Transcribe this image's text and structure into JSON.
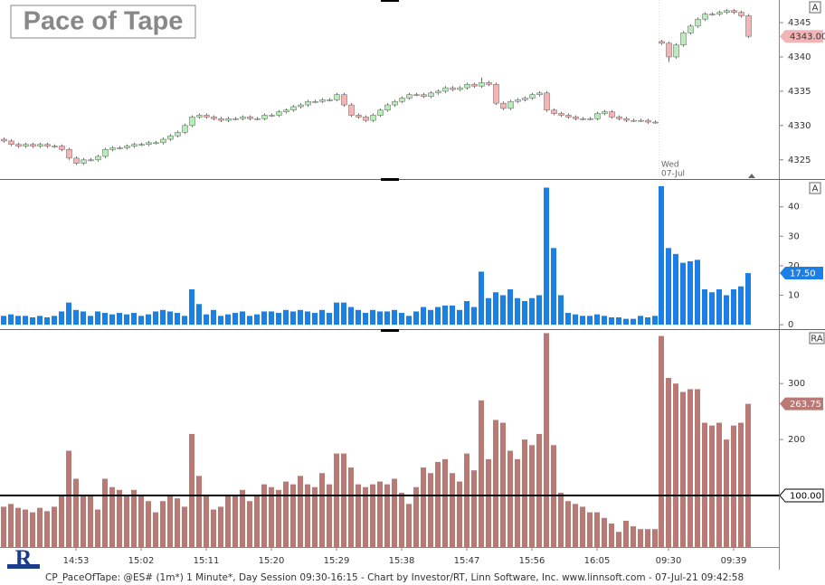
{
  "chart_data": [
    {
      "type": "candlestick",
      "title": "Pace of Tape",
      "scale_button": "A",
      "annotation": [
        "Wed",
        "07-Jul"
      ],
      "open": [
        4328,
        4327.75,
        4327.25,
        4327,
        4327.25,
        4327,
        4327.25,
        4327,
        4327,
        4326.5,
        4325.25,
        4324.5,
        4325,
        4325,
        4325.5,
        4326.5,
        4326.75,
        4326.75,
        4327,
        4327.25,
        4327.25,
        4327.5,
        4327.5,
        4328,
        4328.5,
        4329,
        4330,
        4331.25,
        4331.5,
        4331.25,
        4331,
        4330.75,
        4331,
        4331,
        4331.25,
        4331,
        4331,
        4331.5,
        4331.5,
        4332,
        4332.25,
        4332.75,
        4333,
        4333.5,
        4333.5,
        4333.75,
        4333.75,
        4334.5,
        4333,
        4331.5,
        4331.25,
        4330.75,
        4331.5,
        4332.25,
        4333,
        4333.5,
        4334,
        4334.5,
        4334.5,
        4334.25,
        4334.75,
        4335,
        4335.5,
        4335.25,
        4335.5,
        4336,
        4335.75,
        4336.25,
        4336,
        4333.25,
        4332.5,
        4333.5,
        4333.75,
        4334,
        4334.5,
        4334.75,
        4332.25,
        4331.75,
        4331.5,
        4331.25,
        4331,
        4331,
        4331,
        4331.75,
        4332,
        4331.25,
        4331,
        4330.75,
        4330.75,
        4330.75,
        4330.5,
        4342.25,
        4342,
        4340,
        4341.75,
        4343.5,
        4344.5,
        4345.5,
        4346.25,
        4346.25,
        4346.5,
        4346.75,
        4346.5,
        4346
      ],
      "high": [
        4328.25,
        4328,
        4327.5,
        4327.5,
        4327.5,
        4327.5,
        4327.5,
        4327.25,
        4327.25,
        4326.75,
        4325.5,
        4325.25,
        4325.25,
        4325.75,
        4326.75,
        4327,
        4327,
        4327.25,
        4327.5,
        4327.5,
        4327.75,
        4327.75,
        4328.25,
        4328.75,
        4329.25,
        4330.25,
        4331.5,
        4331.75,
        4331.75,
        4331.5,
        4331.25,
        4331.25,
        4331.25,
        4331.5,
        4331.5,
        4331.25,
        4331.75,
        4331.75,
        4332.25,
        4332.5,
        4333,
        4333.25,
        4333.75,
        4333.75,
        4334,
        4334,
        4334.75,
        4334.75,
        4333.25,
        4331.75,
        4331.5,
        4331.75,
        4332.5,
        4333.25,
        4333.75,
        4334.25,
        4334.75,
        4334.75,
        4334.75,
        4335,
        4335.25,
        4335.75,
        4335.75,
        4335.75,
        4336.25,
        4336.25,
        4337,
        4336.5,
        4336.25,
        4333.5,
        4333.75,
        4334,
        4334.25,
        4334.75,
        4335,
        4335,
        4332.5,
        4332,
        4331.75,
        4331.5,
        4331.25,
        4331.25,
        4332,
        4332.25,
        4332.25,
        4331.5,
        4331.25,
        4331,
        4331,
        4331,
        4330.75,
        4342.5,
        4342.25,
        4342,
        4343.75,
        4344.75,
        4345.75,
        4346.5,
        4346.5,
        4346.75,
        4347,
        4347,
        4346.75,
        4346.25
      ],
      "low": [
        4327.5,
        4327,
        4326.75,
        4326.75,
        4326.75,
        4326.75,
        4326.75,
        4326.75,
        4326.25,
        4325,
        4324.25,
        4324.25,
        4324.75,
        4324.75,
        4325.25,
        4326.25,
        4326.5,
        4326.5,
        4326.75,
        4327,
        4327,
        4327.25,
        4327.25,
        4327.75,
        4328.25,
        4328.75,
        4329.75,
        4331,
        4331,
        4330.75,
        4330.5,
        4330.5,
        4330.75,
        4330.75,
        4330.75,
        4330.75,
        4330.75,
        4331.25,
        4331.25,
        4331.75,
        4332,
        4332.5,
        4332.75,
        4333.25,
        4333.25,
        4333.5,
        4333.5,
        4332.75,
        4331.25,
        4331,
        4330.5,
        4330.5,
        4331.25,
        4332,
        4332.75,
        4333.25,
        4333.75,
        4334.25,
        4334,
        4334,
        4334.5,
        4334.75,
        4335,
        4335,
        4335.25,
        4335.5,
        4335.5,
        4335.75,
        4333,
        4332.25,
        4332.25,
        4333.25,
        4333.5,
        4333.75,
        4334.25,
        4332,
        4331.5,
        4331.25,
        4331,
        4330.75,
        4330.75,
        4330.75,
        4330.75,
        4331.5,
        4331,
        4330.75,
        4330.5,
        4330.5,
        4330.5,
        4330.25,
        4330.25,
        4341.75,
        4339.25,
        4339.75,
        4341.5,
        4343.25,
        4344.25,
        4345.25,
        4346,
        4346,
        4346.25,
        4346.25,
        4345.75,
        4342.75
      ],
      "close": [
        4327.75,
        4327.25,
        4327,
        4327.25,
        4327,
        4327.25,
        4327,
        4327,
        4326.5,
        4325.25,
        4324.5,
        4325,
        4325,
        4325.5,
        4326.5,
        4326.75,
        4326.75,
        4327,
        4327.25,
        4327.25,
        4327.5,
        4327.5,
        4328,
        4328.5,
        4329,
        4330,
        4331.25,
        4331.5,
        4331.25,
        4331,
        4330.75,
        4331,
        4331,
        4331.25,
        4331,
        4331,
        4331.5,
        4331.5,
        4332,
        4332.25,
        4332.75,
        4333,
        4333.5,
        4333.5,
        4333.75,
        4333.75,
        4334.5,
        4333,
        4331.5,
        4331.25,
        4330.75,
        4331.5,
        4332.25,
        4333,
        4333.5,
        4334,
        4334.5,
        4334.5,
        4334.25,
        4334.75,
        4335,
        4335.5,
        4335.25,
        4335.5,
        4336,
        4335.75,
        4336.25,
        4336,
        4333.25,
        4332.5,
        4333.5,
        4333.75,
        4334,
        4334.5,
        4334.75,
        4332.25,
        4331.75,
        4331.5,
        4331.25,
        4331,
        4331,
        4331,
        4331.75,
        4332,
        4331.25,
        4331,
        4330.75,
        4330.75,
        4330.75,
        4330.5,
        4330.5,
        4342,
        4340,
        4341.75,
        4343.5,
        4344.5,
        4345.5,
        4346.25,
        4346.25,
        4346.5,
        4346.75,
        4346.5,
        4346,
        4343
      ],
      "up_color": "#b8ecb8",
      "down_color": "#f2b4b4",
      "ylim": [
        4322.2,
        4348.3
      ],
      "yticks": [
        4325,
        4330,
        4335,
        4340,
        4345
      ],
      "last_value": {
        "value": 4343,
        "label": "4343.00"
      }
    },
    {
      "type": "bar",
      "scale_button": "A",
      "color": "#1b7fe6",
      "values": [
        3,
        3.5,
        3,
        3,
        2.5,
        3,
        2.5,
        3,
        4.5,
        7.5,
        5,
        4.5,
        3,
        4.5,
        4,
        3.5,
        4,
        3.5,
        4,
        3,
        3.5,
        4.5,
        5,
        4.5,
        4,
        3,
        12,
        7,
        3.5,
        5,
        3,
        3.5,
        4,
        4.5,
        3,
        3.5,
        4.5,
        4.5,
        4,
        5,
        4.5,
        5,
        4.5,
        4,
        5,
        4,
        7.5,
        7.5,
        6,
        5,
        4,
        5,
        4.5,
        4.5,
        5,
        4,
        3,
        4.5,
        6,
        5,
        6,
        6.5,
        6.5,
        5,
        8,
        6,
        18,
        9,
        11,
        10,
        12,
        9,
        8,
        9,
        10,
        46.5,
        26,
        10,
        4,
        3.5,
        3,
        3,
        3.5,
        3,
        2.5,
        2.5,
        2,
        2,
        3,
        2.5,
        3,
        47,
        26,
        24,
        21,
        21.5,
        22,
        12,
        11,
        12,
        10,
        12,
        13,
        17.5
      ],
      "ylim": [
        -1.5,
        48.8
      ],
      "yticks": [
        0,
        10,
        20,
        30,
        40
      ],
      "last_value": {
        "value": 17.5,
        "label": "17.50"
      }
    },
    {
      "type": "bar",
      "scale_button": "RA",
      "color": "#b97a76",
      "values": [
        80,
        85,
        78,
        75,
        70,
        78,
        72,
        80,
        100,
        180,
        130,
        100,
        100,
        75,
        130,
        115,
        110,
        100,
        110,
        100,
        90,
        70,
        90,
        100,
        95,
        80,
        210,
        135,
        100,
        75,
        80,
        100,
        100,
        110,
        90,
        100,
        120,
        115,
        110,
        125,
        120,
        135,
        120,
        115,
        140,
        120,
        175,
        175,
        150,
        120,
        115,
        120,
        125,
        120,
        130,
        105,
        85,
        115,
        150,
        140,
        160,
        165,
        140,
        125,
        175,
        145,
        270,
        165,
        235,
        230,
        180,
        165,
        200,
        190,
        210,
        390,
        190,
        105,
        90,
        85,
        80,
        70,
        70,
        60,
        50,
        35,
        55,
        45,
        40,
        40,
        40,
        385,
        310,
        300,
        285,
        290,
        290,
        230,
        225,
        230,
        200,
        225,
        230,
        263.75
      ],
      "ylim": [
        8,
        394
      ],
      "yticks": [
        200,
        300
      ],
      "reference_line": {
        "value": 100,
        "label": "100.00"
      },
      "last_value": {
        "value": 263.75,
        "label": "263.75"
      },
      "categories": [
        null,
        null,
        null,
        null,
        null,
        null,
        null,
        null,
        null,
        null,
        "14:53",
        null,
        null,
        null,
        null,
        null,
        null,
        null,
        null,
        "15:02",
        null,
        null,
        null,
        null,
        null,
        null,
        null,
        null,
        "15:11",
        null,
        null,
        null,
        null,
        null,
        null,
        null,
        null,
        "15:20",
        null,
        null,
        null,
        null,
        null,
        null,
        null,
        null,
        "15:29",
        null,
        null,
        null,
        null,
        null,
        null,
        null,
        null,
        "15:38",
        null,
        null,
        null,
        null,
        null,
        null,
        null,
        null,
        "15:47",
        null,
        null,
        null,
        null,
        null,
        null,
        null,
        null,
        "15:56",
        null,
        null,
        null,
        null,
        null,
        null,
        null,
        null,
        "16:05",
        null,
        null,
        null,
        null,
        null,
        null,
        null,
        null,
        null,
        "09:30",
        null,
        null,
        null,
        null,
        null,
        null,
        null,
        null,
        "09:39",
        null,
        null
      ]
    }
  ],
  "footer": "CP_PaceOfTape: @ES# (1m*) 1 Minute*, Day Session 09:30-16:15 - Chart by Investor/RT, Linn Software, Inc. www.linnsoft.com - 07-Jul-21 09:42:58"
}
